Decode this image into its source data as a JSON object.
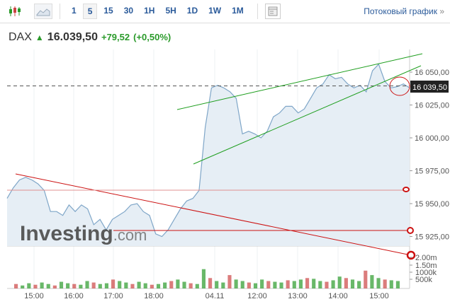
{
  "toolbar": {
    "intervals": [
      "1",
      "5",
      "15",
      "30",
      "1H",
      "5H",
      "1D",
      "1W",
      "1M"
    ],
    "active_interval": "5",
    "stream_label": "Потоковый график",
    "stream_chevron": "»"
  },
  "quote": {
    "symbol": "DAX",
    "price": "16.039,50",
    "change": "+79,52",
    "change_pct": "(+0,50%)",
    "direction": "up"
  },
  "colors": {
    "line": "#7fa6c8",
    "fill": "#e6eef5",
    "up": "#2a9a2a",
    "down": "#cc4444",
    "trend_green": "#1e9e1e",
    "trend_red": "#cc1111"
  },
  "watermark": {
    "brand": "Investing",
    "suffix": ".com"
  },
  "chart_data": {
    "type": "area",
    "y_ticks": [
      "16 050,00",
      "16 025,00",
      "16 000,00",
      "15 975,00",
      "15 950,00",
      "15 925,00"
    ],
    "y_tick_values": [
      16050,
      16025,
      16000,
      15975,
      15950,
      15925
    ],
    "ylim": [
      15918,
      16067
    ],
    "x_ticks": [
      "15:00",
      "16:00",
      "17:00",
      "18:00",
      "04.11",
      "12:00",
      "13:00",
      "14:00",
      "15:00"
    ],
    "current_price_label": "16 039,50",
    "current_price": 16039.5,
    "volume_ticks": [
      "2.00m",
      "1.50m",
      "1000k",
      "500k"
    ],
    "prices": [
      15954,
      15962,
      15968,
      15970,
      15968,
      15965,
      15960,
      15944,
      15944,
      15941,
      15949,
      15944,
      15949,
      15946,
      15934,
      15938,
      15930,
      15938,
      15941,
      15944,
      15949,
      15950,
      15944,
      15941,
      15927,
      15925,
      15930,
      15938,
      15946,
      15952,
      15954,
      15960,
      16008,
      16038,
      16040,
      16038,
      16035,
      16030,
      16003,
      16005,
      16003,
      16000,
      16005,
      16016,
      16019,
      16024,
      16024,
      16019,
      16022,
      16030,
      16038,
      16041,
      16048,
      16045,
      16046,
      16041,
      16038,
      16040,
      16035,
      16051,
      16056,
      16043,
      16038,
      16039,
      16041,
      16038
    ],
    "volumes_k": [
      300,
      200,
      350,
      250,
      400,
      300,
      200,
      450,
      350,
      300,
      250,
      500,
      400,
      300,
      350,
      600,
      500,
      400,
      300,
      450,
      350,
      250,
      300,
      400,
      500,
      600,
      450,
      350,
      300,
      1300,
      700,
      500,
      400,
      900,
      600,
      500,
      400,
      350,
      600,
      500,
      450,
      400,
      550,
      500,
      600,
      700,
      650,
      500,
      450,
      550,
      800,
      700,
      600,
      500,
      1200,
      900,
      700,
      600,
      550,
      500
    ]
  }
}
